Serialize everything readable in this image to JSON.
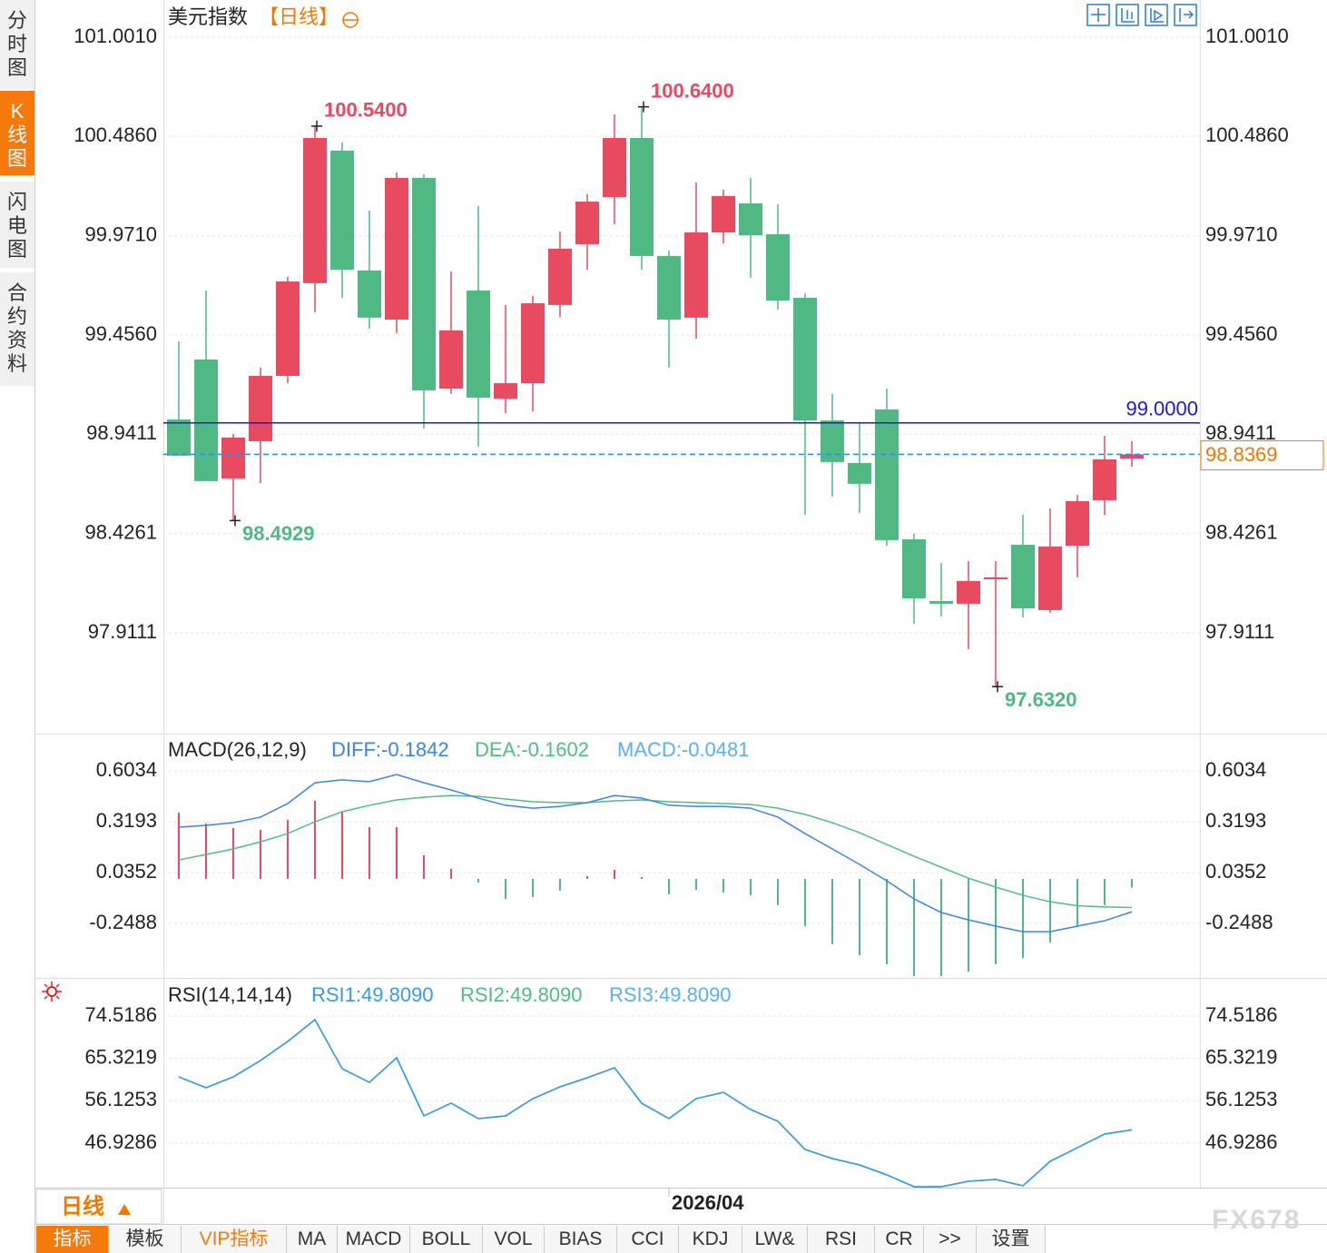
{
  "sidebar": {
    "tabs": [
      "分时图",
      "K线图",
      "闪电图",
      "合约资料"
    ],
    "active": 1
  },
  "chart_data": [
    {
      "type": "candlestick",
      "title": "美元指数",
      "subtitle": "【日线】",
      "grid": true,
      "up_color": "#e84a5f",
      "down_color": "#4fb883",
      "ylim": [
        97.388,
        101.194
      ],
      "yticks": [
        {
          "value": 101.001,
          "label": "101.0010"
        },
        {
          "value": 100.486,
          "label": "100.4860"
        },
        {
          "value": 99.971,
          "label": "99.9710"
        },
        {
          "value": 99.456,
          "label": "99.4560"
        },
        98.9411,
        98.4261,
        97.9111
      ],
      "categories": [
        null,
        null,
        null,
        null,
        null,
        null,
        null,
        null,
        null,
        null,
        null,
        null,
        null,
        null,
        null,
        null,
        null,
        null,
        "2026/04",
        null,
        null,
        null,
        null,
        null,
        null,
        null,
        null,
        null,
        null,
        null,
        null,
        null,
        null,
        null,
        null,
        null
      ],
      "open": [
        99.018,
        99.329,
        98.712,
        98.905,
        99.244,
        99.725,
        100.412,
        99.791,
        99.536,
        100.271,
        99.178,
        99.687,
        99.126,
        99.206,
        99.612,
        99.927,
        100.172,
        100.478,
        99.866,
        99.546,
        99.988,
        100.139,
        99.979,
        99.649,
        99.013,
        98.792,
        99.07,
        98.396,
        98.076,
        98.062,
        98.189,
        98.368,
        98.029,
        98.363,
        98.599,
        98.815
      ],
      "high": [
        99.423,
        99.687,
        98.943,
        99.287,
        99.758,
        100.54,
        100.455,
        100.101,
        100.299,
        100.29,
        99.786,
        100.125,
        99.612,
        99.659,
        99.993,
        100.186,
        100.601,
        100.64,
        99.894,
        100.247,
        100.21,
        100.271,
        100.134,
        99.673,
        99.15,
        99.004,
        99.178,
        98.425,
        98.274,
        98.283,
        98.283,
        98.523,
        98.556,
        98.627,
        98.933,
        98.905
      ],
      "low": [
        98.83,
        98.698,
        98.4929,
        98.688,
        99.206,
        99.574,
        99.649,
        99.489,
        99.466,
        98.971,
        99.15,
        98.877,
        99.051,
        99.06,
        99.55,
        99.795,
        100.031,
        99.795,
        99.287,
        99.437,
        99.932,
        99.753,
        99.588,
        98.523,
        98.618,
        98.533,
        98.363,
        97.958,
        97.996,
        97.826,
        97.632,
        97.991,
        98.015,
        98.199,
        98.523,
        98.773
      ],
      "close": [
        98.83,
        98.698,
        98.924,
        99.244,
        99.734,
        100.478,
        99.795,
        99.546,
        100.271,
        99.169,
        99.48,
        99.131,
        99.206,
        99.621,
        99.904,
        100.148,
        100.478,
        99.866,
        99.536,
        99.988,
        100.177,
        99.974,
        99.635,
        99.013,
        98.797,
        98.684,
        98.392,
        98.09,
        98.062,
        98.18,
        98.199,
        98.038,
        98.359,
        98.594,
        98.811,
        98.8369
      ],
      "high_color": "#e84a5f",
      "low_color": "#4fb883",
      "high_labels": [
        {
          "value": 100.54,
          "label": "100.5400"
        },
        {
          "value": 100.64,
          "label": "100.6400"
        }
      ],
      "low_labels": [
        {
          "value": 98.4929,
          "label": "98.4929"
        },
        {
          "value": 97.632,
          "label": "97.6320"
        }
      ],
      "reference_lines": [
        {
          "value": 99,
          "label": "99.0000",
          "color": "#1a1ad0",
          "dashed": false,
          "label_style": "above",
          "label_color": "#1a1ad0"
        },
        {
          "value": 98.8369,
          "label": "98.8369",
          "color": "#2a8cf0",
          "dashed": true,
          "label_style": "box",
          "label_color": "#f07800"
        }
      ]
    },
    {
      "type": "line",
      "title": "MACD(26,12,9)",
      "grid": true,
      "ylim": [
        -0.5431,
        0.7759
      ],
      "yticks": [
        0.6034,
        0.3193,
        0.0352,
        -0.2488
      ],
      "series": [
        {
          "name": "DIFF:-0.1842",
          "color": "#3a84ee",
          "values": [
            0.289,
            0.299,
            0.314,
            0.345,
            0.421,
            0.537,
            0.553,
            0.543,
            0.583,
            0.537,
            0.497,
            0.451,
            0.411,
            0.395,
            0.405,
            0.426,
            0.466,
            0.451,
            0.411,
            0.405,
            0.405,
            0.395,
            0.345,
            0.253,
            0.167,
            0.081,
            -0.011,
            -0.112,
            -0.188,
            -0.229,
            -0.264,
            -0.295,
            -0.295,
            -0.264,
            -0.234,
            -0.1842
          ]
        },
        {
          "name": "DEA:-0.1602",
          "color": "#4fbf7e",
          "values": [
            0.106,
            0.136,
            0.167,
            0.207,
            0.253,
            0.319,
            0.375,
            0.411,
            0.441,
            0.456,
            0.466,
            0.461,
            0.446,
            0.431,
            0.426,
            0.426,
            0.436,
            0.441,
            0.431,
            0.426,
            0.421,
            0.416,
            0.395,
            0.36,
            0.314,
            0.258,
            0.192,
            0.126,
            0.065,
            0.004,
            -0.046,
            -0.092,
            -0.128,
            -0.15,
            -0.157,
            -0.1602
          ]
        },
        {
          "name": "MACD:-0.0481",
          "type": "bar",
          "color": "#5ab0f0",
          "up_color": "#e84a5f",
          "down_color": "#4fb883",
          "values": [
            0.37,
            0.309,
            0.284,
            0.274,
            0.33,
            0.436,
            0.375,
            0.289,
            0.289,
            0.132,
            0.056,
            -0.02,
            -0.112,
            -0.101,
            -0.066,
            0.015,
            0.051,
            0.01,
            -0.086,
            -0.061,
            -0.076,
            -0.091,
            -0.147,
            -0.264,
            -0.365,
            -0.426,
            -0.477,
            -0.56,
            -0.56,
            -0.518,
            -0.477,
            -0.441,
            -0.355,
            -0.264,
            -0.147,
            -0.0481
          ]
        }
      ]
    },
    {
      "type": "line",
      "title": "RSI(14,14,14)",
      "grid": true,
      "ylim": [
        37.27,
        81.22
      ],
      "yticks": [
        74.5186,
        65.3219,
        56.1253,
        46.9286
      ],
      "series": [
        {
          "name": "RSI1:49.8090",
          "color": "#3a9ae8",
          "values": [
            61.31,
            58.95,
            61.31,
            64.86,
            69.0,
            73.73,
            63.09,
            60.13,
            65.45,
            52.84,
            55.6,
            52.25,
            52.84,
            56.58,
            59.15,
            61.12,
            63.29,
            55.6,
            52.25,
            56.58,
            57.96,
            54.22,
            51.66,
            45.55,
            43.58,
            42.2,
            40.03,
            37.47,
            37.47,
            38.65,
            39.04,
            37.67,
            42.98,
            45.94,
            48.9,
            49.809
          ]
        },
        {
          "name": "RSI2:49.8090",
          "color": "#4fbf7e",
          "values": [
            61.31,
            58.95,
            61.31,
            64.86,
            69.0,
            73.73,
            63.09,
            60.13,
            65.45,
            52.84,
            55.6,
            52.25,
            52.84,
            56.58,
            59.15,
            61.12,
            63.29,
            55.6,
            52.25,
            56.58,
            57.96,
            54.22,
            51.66,
            45.55,
            43.58,
            42.2,
            40.03,
            37.47,
            37.47,
            38.65,
            39.04,
            37.67,
            42.98,
            45.94,
            48.9,
            49.809
          ]
        },
        {
          "name": "RSI3:49.8090",
          "color": "#5ab0f0",
          "values": [
            61.31,
            58.95,
            61.31,
            64.86,
            69.0,
            73.73,
            63.09,
            60.13,
            65.45,
            52.84,
            55.6,
            52.25,
            52.84,
            56.58,
            59.15,
            61.12,
            63.29,
            55.6,
            52.25,
            56.58,
            57.96,
            54.22,
            51.66,
            45.55,
            43.58,
            42.2,
            40.03,
            37.47,
            37.47,
            38.65,
            39.04,
            37.67,
            42.98,
            45.94,
            48.9,
            49.809
          ]
        }
      ]
    }
  ],
  "period": "日线",
  "toolbar": {
    "items": [
      "指标",
      "模板",
      "VIP指标",
      "MA",
      "MACD",
      "BOLL",
      "VOL",
      "BIAS",
      "CCI",
      "KDJ",
      "LW&",
      "RSI",
      "CR",
      ">>",
      "设置"
    ],
    "active": 0,
    "highlighted": 2
  },
  "watermark": "FX678"
}
